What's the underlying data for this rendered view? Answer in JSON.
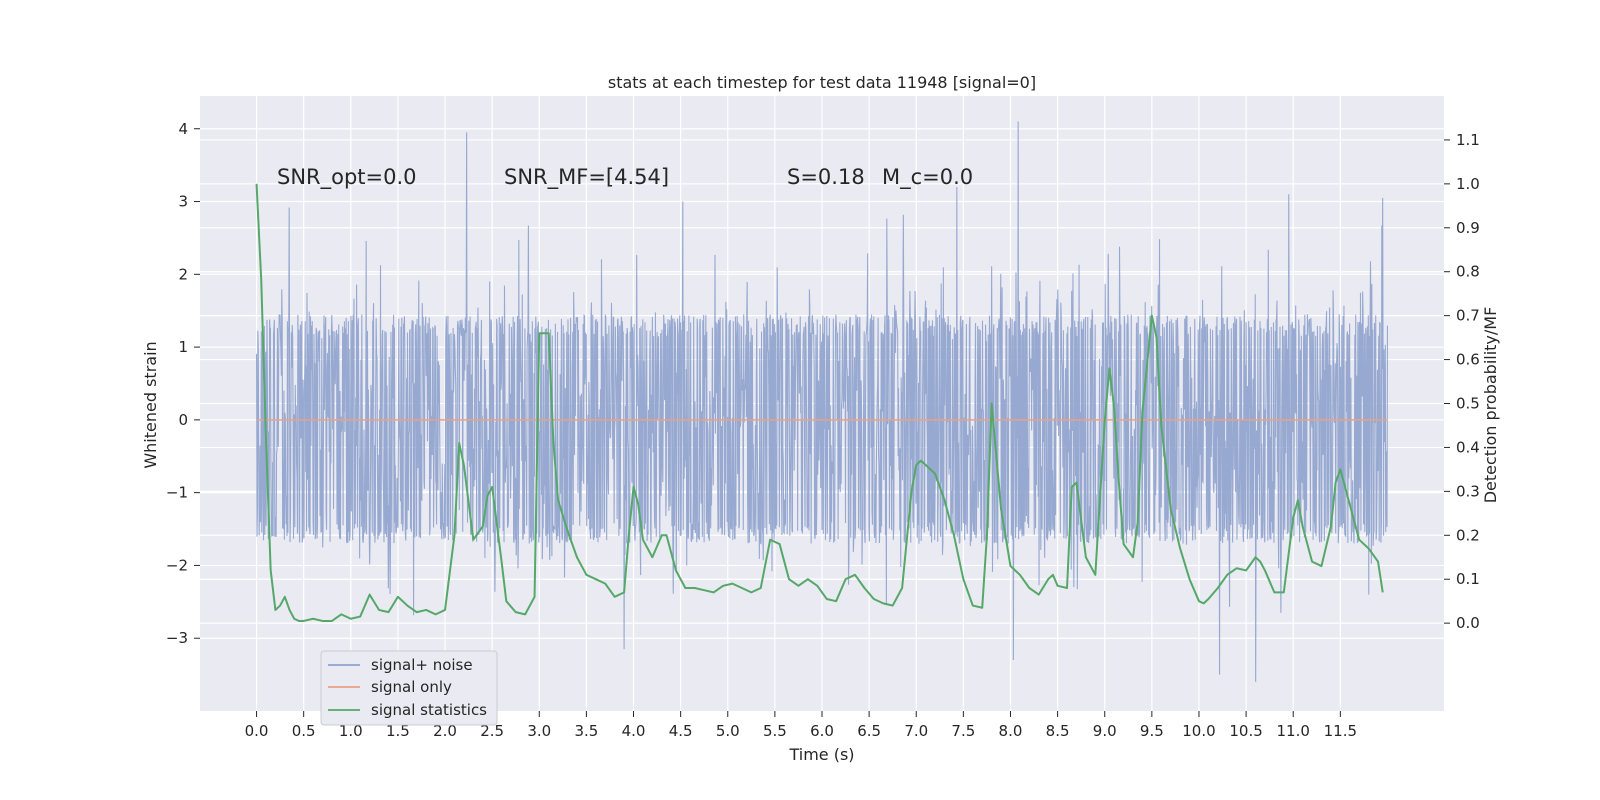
{
  "chart_data": {
    "type": "line",
    "title": "stats at each timestep for test data 11948 [signal=0]",
    "xlabel": "Time (s)",
    "ylabel_left": "Whitened strain",
    "ylabel_right": "Detection probability/MF",
    "xlim": [
      -0.6,
      12.6
    ],
    "ylim_left": [
      -4.0,
      4.45
    ],
    "ylim_right": [
      -0.2,
      1.2
    ],
    "grid": true,
    "legend_placement": "lower-left",
    "x_ticks": [
      "0.0",
      "0.5",
      "1.0",
      "1.5",
      "2.0",
      "2.5",
      "3.0",
      "3.5",
      "4.0",
      "4.5",
      "5.0",
      "5.5",
      "6.0",
      "6.5",
      "7.0",
      "7.5",
      "8.0",
      "8.5",
      "9.0",
      "9.5",
      "10.0",
      "10.5",
      "11.0",
      "11.5"
    ],
    "y_ticks_left": [
      "4",
      "3",
      "2",
      "1",
      "0",
      "−1",
      "−2",
      "−3"
    ],
    "y_ticks_right": [
      "1.1",
      "1.0",
      "0.9",
      "0.8",
      "0.7",
      "0.6",
      "0.5",
      "0.4",
      "0.3",
      "0.2",
      "0.1",
      "0.0"
    ],
    "annotations": [
      {
        "text": "SNR_opt=0.0",
        "x": 0.2,
        "y": 3.3
      },
      {
        "text": "SNR_MF=[4.54]",
        "x": 2.6,
        "y": 3.3
      },
      {
        "text": "S=0.18",
        "x": 5.6,
        "y": 3.3
      },
      {
        "text": "M_c=0.0",
        "x": 6.6,
        "y": 3.3
      }
    ],
    "series": [
      {
        "name": "signal+ noise",
        "color": "#8fa3cd",
        "axis": "left",
        "kind": "noise",
        "x_range": [
          0.0,
          12.0
        ],
        "bulk_range": [
          -1.7,
          1.45
        ],
        "peaks": [
          {
            "x": 2.23,
            "y": 3.95
          },
          {
            "x": 8.08,
            "y": 4.1
          },
          {
            "x": 7.43,
            "y": 3.2
          },
          {
            "x": 10.95,
            "y": 3.1
          },
          {
            "x": 11.95,
            "y": 3.05
          },
          {
            "x": 10.6,
            "y": -3.6
          },
          {
            "x": 10.22,
            "y": -3.5
          },
          {
            "x": 8.03,
            "y": -3.3
          },
          {
            "x": 3.9,
            "y": -3.15
          }
        ]
      },
      {
        "name": "signal only",
        "color": "#e8a283",
        "axis": "left",
        "x": [
          0.0,
          12.0
        ],
        "y": [
          0.0,
          0.0
        ]
      },
      {
        "name": "signal statistics",
        "color": "#55a868",
        "axis": "right",
        "x": [
          0.0,
          0.05,
          0.1,
          0.15,
          0.2,
          0.25,
          0.3,
          0.35,
          0.4,
          0.45,
          0.5,
          0.6,
          0.7,
          0.8,
          0.9,
          1.0,
          1.1,
          1.2,
          1.3,
          1.4,
          1.5,
          1.6,
          1.7,
          1.8,
          1.9,
          2.0,
          2.1,
          2.15,
          2.2,
          2.3,
          2.4,
          2.45,
          2.5,
          2.6,
          2.65,
          2.75,
          2.85,
          2.95,
          3.0,
          3.05,
          3.1,
          3.15,
          3.2,
          3.3,
          3.4,
          3.5,
          3.6,
          3.7,
          3.8,
          3.9,
          3.95,
          4.0,
          4.05,
          4.1,
          4.2,
          4.3,
          4.35,
          4.45,
          4.55,
          4.65,
          4.75,
          4.85,
          4.95,
          5.05,
          5.15,
          5.25,
          5.35,
          5.45,
          5.55,
          5.65,
          5.75,
          5.85,
          5.95,
          6.05,
          6.15,
          6.25,
          6.35,
          6.45,
          6.55,
          6.65,
          6.75,
          6.85,
          6.95,
          7.0,
          7.05,
          7.1,
          7.2,
          7.3,
          7.4,
          7.5,
          7.6,
          7.7,
          7.75,
          7.8,
          7.9,
          8.0,
          8.1,
          8.2,
          8.3,
          8.4,
          8.45,
          8.5,
          8.6,
          8.65,
          8.7,
          8.8,
          8.9,
          9.0,
          9.05,
          9.1,
          9.15,
          9.2,
          9.3,
          9.35,
          9.4,
          9.5,
          9.55,
          9.6,
          9.7,
          9.8,
          9.9,
          10.0,
          10.05,
          10.1,
          10.2,
          10.3,
          10.4,
          10.5,
          10.6,
          10.65,
          10.7,
          10.8,
          10.9,
          11.0,
          11.05,
          11.1,
          11.2,
          11.3,
          11.4,
          11.45,
          11.5,
          11.6,
          11.7,
          11.8,
          11.9,
          11.95
        ],
        "y": [
          1.0,
          0.78,
          0.42,
          0.12,
          0.03,
          0.04,
          0.06,
          0.03,
          0.01,
          0.005,
          0.005,
          0.01,
          0.005,
          0.005,
          0.02,
          0.01,
          0.015,
          0.065,
          0.03,
          0.025,
          0.06,
          0.04,
          0.025,
          0.03,
          0.02,
          0.03,
          0.2,
          0.41,
          0.36,
          0.19,
          0.22,
          0.29,
          0.31,
          0.14,
          0.05,
          0.025,
          0.02,
          0.06,
          0.66,
          0.66,
          0.66,
          0.41,
          0.28,
          0.21,
          0.15,
          0.11,
          0.1,
          0.09,
          0.06,
          0.07,
          0.2,
          0.31,
          0.27,
          0.19,
          0.15,
          0.2,
          0.2,
          0.12,
          0.08,
          0.08,
          0.075,
          0.07,
          0.085,
          0.09,
          0.08,
          0.07,
          0.08,
          0.19,
          0.18,
          0.1,
          0.085,
          0.1,
          0.085,
          0.055,
          0.05,
          0.1,
          0.11,
          0.08,
          0.055,
          0.045,
          0.04,
          0.08,
          0.3,
          0.36,
          0.37,
          0.36,
          0.34,
          0.28,
          0.2,
          0.1,
          0.04,
          0.035,
          0.2,
          0.5,
          0.26,
          0.13,
          0.11,
          0.08,
          0.065,
          0.1,
          0.11,
          0.085,
          0.08,
          0.31,
          0.32,
          0.15,
          0.11,
          0.46,
          0.58,
          0.49,
          0.32,
          0.18,
          0.15,
          0.23,
          0.48,
          0.7,
          0.65,
          0.45,
          0.26,
          0.17,
          0.1,
          0.05,
          0.045,
          0.055,
          0.08,
          0.11,
          0.125,
          0.12,
          0.15,
          0.14,
          0.12,
          0.07,
          0.07,
          0.24,
          0.28,
          0.22,
          0.14,
          0.13,
          0.22,
          0.32,
          0.35,
          0.27,
          0.19,
          0.17,
          0.14,
          0.07
        ]
      }
    ]
  }
}
